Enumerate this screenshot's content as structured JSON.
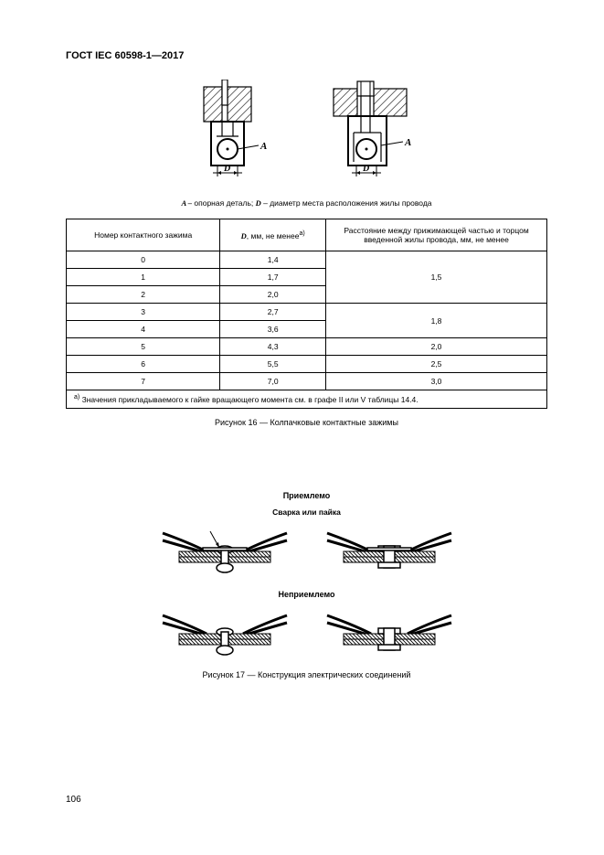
{
  "header": "ГОСТ IEC 60598-1—2017",
  "page_number": "106",
  "fig16": {
    "legend_prefix": "A –",
    "legend_a": " опорная деталь; ",
    "legend_d_prefix": "D",
    "legend_d": "  – диаметр места расположения жилы провода",
    "caption": "Рисунок 16 — Колпачковые контактные зажимы",
    "label_A": "A",
    "label_D": "D"
  },
  "table": {
    "col1": "Номер контактного зажима",
    "col2_plain": "D",
    "col2_rest": ", мм, не менее",
    "col2_sup": "a)",
    "col3": "Расстояние между прижимающей частью и торцом введенной жилы провода, мм, не менее",
    "rows": [
      {
        "n": "0",
        "d": "1,4",
        "g": "1,5",
        "span": 3
      },
      {
        "n": "1",
        "d": "1,7"
      },
      {
        "n": "2",
        "d": "2,0"
      },
      {
        "n": "3",
        "d": "2,7",
        "g": "1,8",
        "span": 2
      },
      {
        "n": "4",
        "d": "3,6"
      },
      {
        "n": "5",
        "d": "4,3",
        "g": "2,0",
        "span": 1
      },
      {
        "n": "6",
        "d": "5,5",
        "g": "2,5",
        "span": 1
      },
      {
        "n": "7",
        "d": "7,0",
        "g": "3,0",
        "span": 1
      }
    ],
    "footnote_sup": "a)",
    "footnote": " Значения прикладываемого к гайке вращающего момента см. в графе II или V таблицы 14.4."
  },
  "fig17": {
    "label_ok": "Приемлемо",
    "label_weld": "Сварка или пайка",
    "label_bad": "Неприемлемо",
    "caption": "Рисунок 17 — Конструкция электрических соединений"
  },
  "colors": {
    "hatch": "#4a4a4a",
    "wire": "#333333",
    "line": "#000000"
  }
}
